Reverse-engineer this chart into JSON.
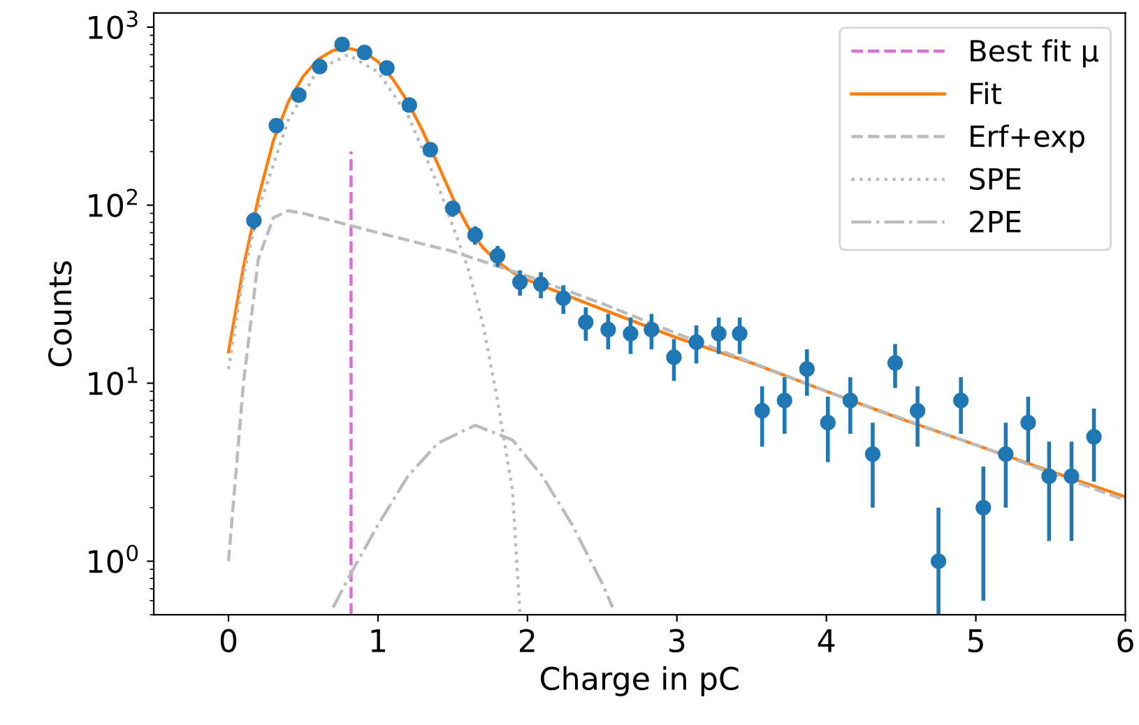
{
  "chart_data": {
    "type": "scatter",
    "xlabel": "Charge in pC",
    "ylabel": "Counts",
    "log": "y",
    "xlim": [
      -0.5,
      6
    ],
    "ylim": [
      0.5,
      1200
    ],
    "xticks": [
      0,
      1,
      2,
      3,
      4,
      5,
      6
    ],
    "yticks": [
      {
        "value": 1,
        "label": "10$^{0}$"
      },
      {
        "value": 10,
        "label": "10$^{1}$"
      },
      {
        "value": 100,
        "label": "10$^{2}$"
      },
      {
        "value": 1000,
        "label": "10$^{3}$"
      }
    ],
    "grid": false,
    "legend": "top right",
    "series": [
      {
        "name": "Best fit μ",
        "type": "line",
        "color": "#da70d6",
        "line_style": "dashed",
        "x": [
          0.82,
          0.82
        ],
        "values": [
          0.5,
          200
        ]
      },
      {
        "name": "Fit",
        "type": "line",
        "color": "#ff7f0e",
        "line_style": "solid",
        "x": [
          0,
          0.1,
          0.2,
          0.3,
          0.4,
          0.5,
          0.6,
          0.7,
          0.8,
          0.9,
          1.0,
          1.1,
          1.2,
          1.3,
          1.4,
          1.5,
          1.6,
          1.7,
          1.8,
          1.9,
          2.0,
          2.5,
          3.0,
          3.5,
          4.0,
          4.5,
          5.0,
          5.5,
          6.0
        ],
        "values": [
          15,
          45,
          110,
          230,
          380,
          530,
          660,
          740,
          760,
          730,
          640,
          510,
          380,
          260,
          170,
          110,
          76,
          58,
          48,
          42,
          38,
          26,
          18,
          13,
          9,
          6.3,
          4.5,
          3.2,
          2.3
        ]
      },
      {
        "name": "Erf+exp",
        "type": "line",
        "color": "#bbbbbb",
        "line_style": "dashed",
        "x": [
          0,
          0.1,
          0.2,
          0.3,
          0.4,
          0.5,
          1.0,
          1.5,
          2.0,
          2.5,
          3.0,
          4.0,
          5.0,
          6.0
        ],
        "values": [
          1.0,
          10,
          50,
          85,
          93,
          90,
          70,
          55,
          40,
          28,
          19,
          9,
          4.5,
          2.2
        ]
      },
      {
        "name": "SPE",
        "type": "line",
        "color": "#bbbbbb",
        "line_style": "dotted",
        "x": [
          0,
          0.1,
          0.2,
          0.4,
          0.6,
          0.8,
          1.0,
          1.2,
          1.4,
          1.6,
          1.7,
          1.8,
          1.9,
          1.95
        ],
        "values": [
          12,
          40,
          95,
          300,
          580,
          700,
          560,
          320,
          130,
          45,
          22,
          8,
          2.5,
          0.5
        ]
      },
      {
        "name": "2PE",
        "type": "line",
        "color": "#bbbbbb",
        "line_style": "dashdot",
        "x": [
          0.7,
          0.8,
          1.0,
          1.2,
          1.4,
          1.65,
          1.9,
          2.1,
          2.3,
          2.5,
          2.57
        ],
        "values": [
          0.55,
          0.8,
          1.6,
          3,
          4.6,
          5.8,
          4.8,
          3,
          1.6,
          0.75,
          0.55
        ]
      },
      {
        "color": "#1f77b4",
        "marker": "circle",
        "x": [
          0.17,
          0.32,
          0.47,
          0.61,
          0.76,
          0.91,
          1.06,
          1.21,
          1.35,
          1.5,
          1.65,
          1.8,
          1.95,
          2.09,
          2.24,
          2.39,
          2.54,
          2.69,
          2.83,
          2.98,
          3.13,
          3.28,
          3.42,
          3.57,
          3.72,
          3.87,
          4.01,
          4.16,
          4.31,
          4.46,
          4.61,
          4.75,
          4.9,
          5.05,
          5.2,
          5.35,
          5.49,
          5.64,
          5.79
        ],
        "values": [
          82,
          280,
          415,
          600,
          800,
          720,
          590,
          365,
          205,
          96,
          68,
          52,
          37,
          36,
          30,
          22,
          20,
          19,
          20,
          14,
          17,
          19,
          19,
          7,
          8,
          12,
          6,
          8,
          4,
          13,
          7,
          1,
          8,
          2,
          4,
          6,
          3,
          3,
          5
        ],
        "errors": [
          9,
          17,
          20,
          24,
          28,
          27,
          24,
          19,
          14,
          10,
          8,
          7,
          6,
          6,
          5.5,
          4.7,
          4.5,
          4.4,
          4.5,
          3.7,
          4.1,
          4.4,
          4.4,
          2.6,
          2.8,
          3.5,
          2.4,
          2.8,
          2,
          3.6,
          2.6,
          [
            0.5,
            2
          ],
          2.8,
          1.4,
          2,
          2.4,
          1.7,
          1.7,
          2.2
        ]
      }
    ]
  }
}
